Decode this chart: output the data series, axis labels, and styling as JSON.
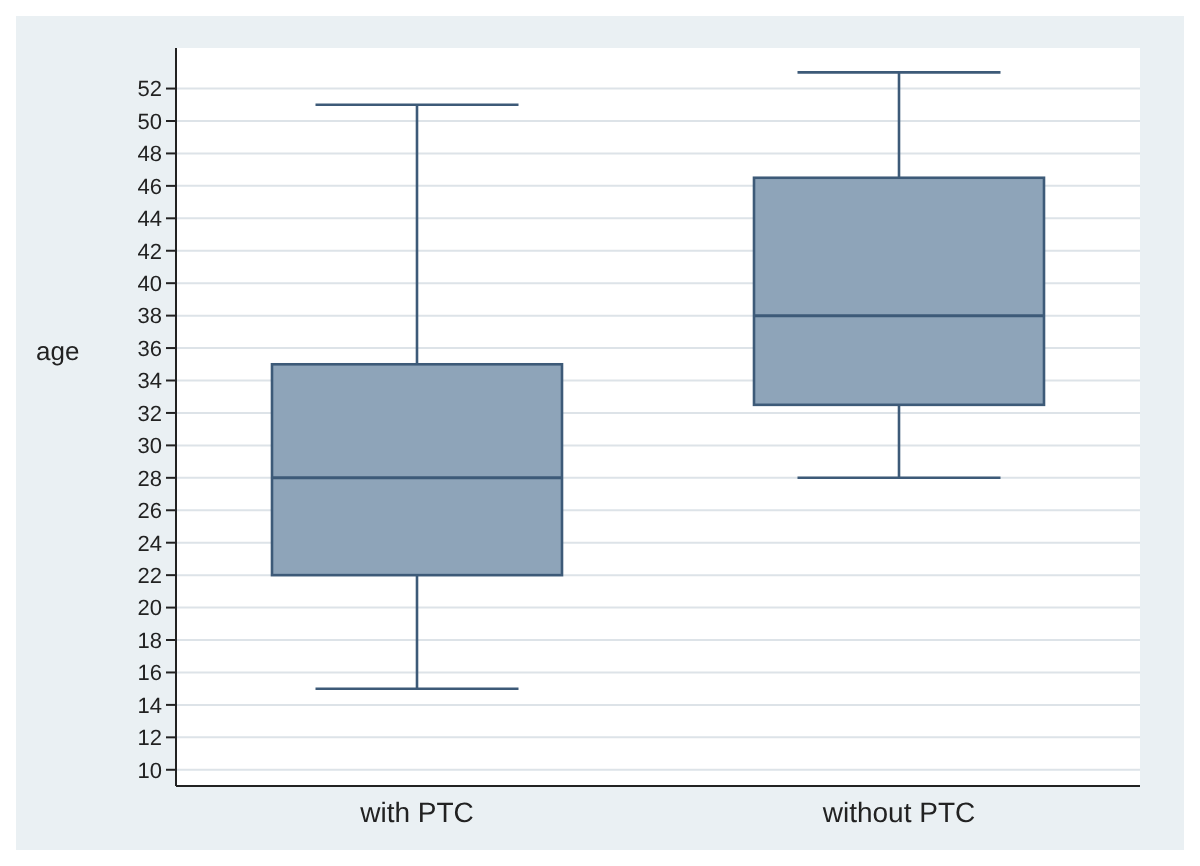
{
  "chart_data": {
    "type": "box",
    "ylabel": "age",
    "categories": [
      "with PTC",
      "without PTC"
    ],
    "color": "#8ea4b9",
    "boxes": [
      {
        "low": 15,
        "q1": 22,
        "median": 28,
        "q3": 35,
        "high": 51
      },
      {
        "low": 28,
        "q1": 32.5,
        "median": 38,
        "q3": 46.5,
        "high": 53
      }
    ],
    "ylim": [
      9,
      54.5
    ],
    "yticks": [
      10,
      12,
      14,
      16,
      18,
      20,
      22,
      24,
      26,
      28,
      30,
      32,
      34,
      36,
      38,
      40,
      42,
      44,
      46,
      48,
      50,
      52
    ],
    "grid": "y"
  }
}
